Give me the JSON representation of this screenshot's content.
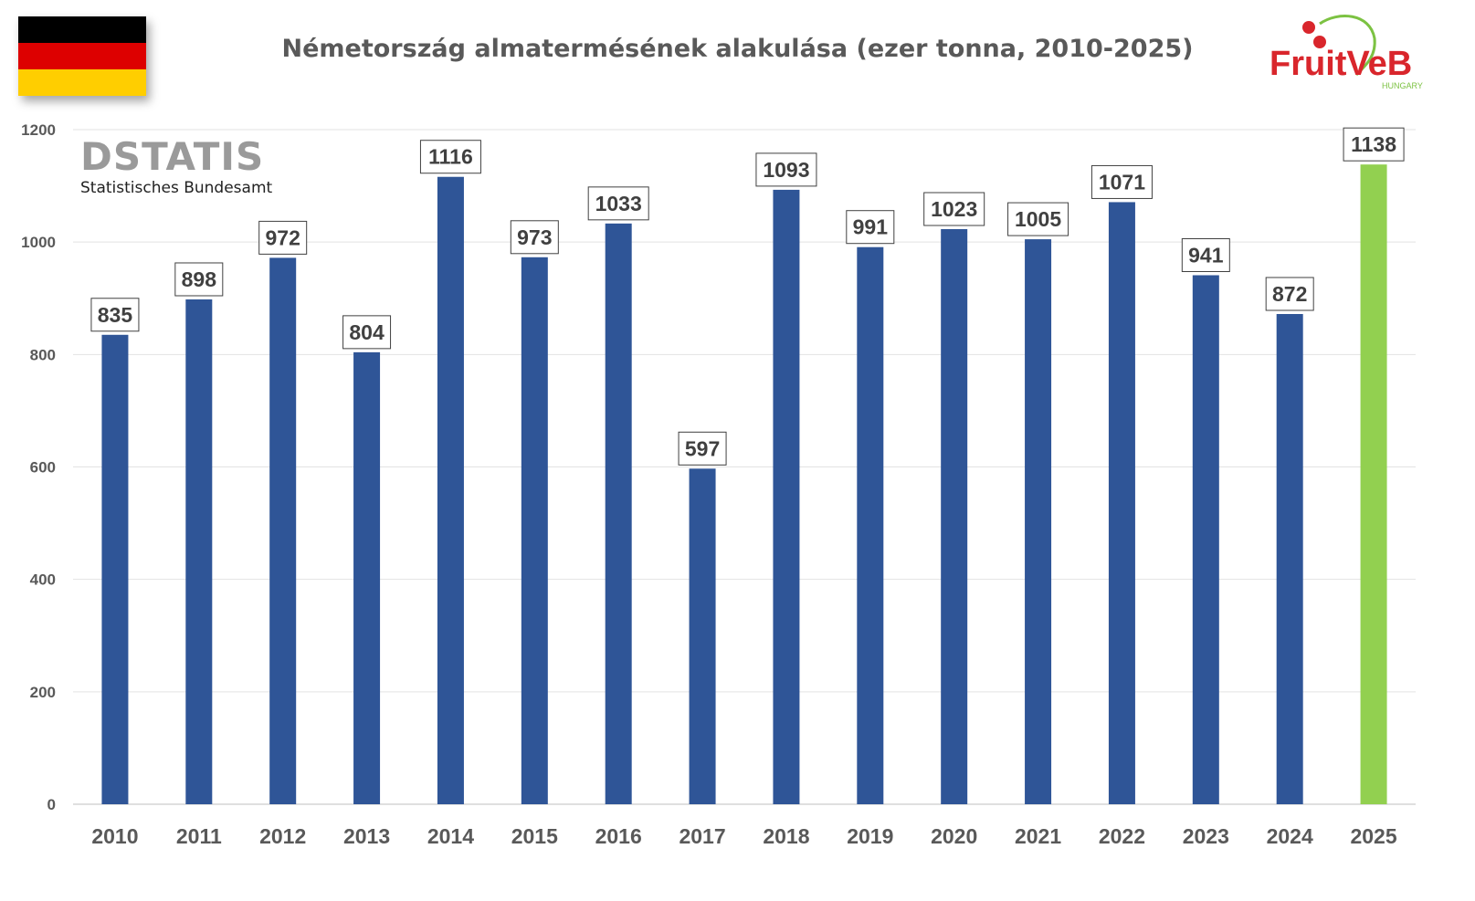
{
  "chart_data": {
    "type": "bar",
    "title": "Németország almatermésének alakulása (ezer tonna, 2010-2025)",
    "categories": [
      "2010",
      "2011",
      "2012",
      "2013",
      "2014",
      "2015",
      "2016",
      "2017",
      "2018",
      "2019",
      "2020",
      "2021",
      "2022",
      "2023",
      "2024",
      "2025"
    ],
    "values": [
      835,
      898,
      972,
      804,
      1116,
      973,
      1033,
      597,
      1093,
      991,
      1023,
      1005,
      1071,
      941,
      872,
      1138
    ],
    "ylim": [
      0,
      1200
    ],
    "yticks": [
      0,
      200,
      400,
      600,
      800,
      1000,
      1200
    ],
    "grid": true,
    "colors": {
      "default_bar": "#2f5597",
      "highlight_bar": "#92d050",
      "highlight_index": 15
    }
  },
  "branding": {
    "destatis_word": "DSTATIS",
    "destatis_subtitle": "Statistisches Bundesamt",
    "fruitveb_word": "FruitVeB",
    "fruitveb_country": "HUNGARY"
  },
  "flag_colors": [
    "#000000",
    "#dd0000",
    "#ffce00"
  ]
}
